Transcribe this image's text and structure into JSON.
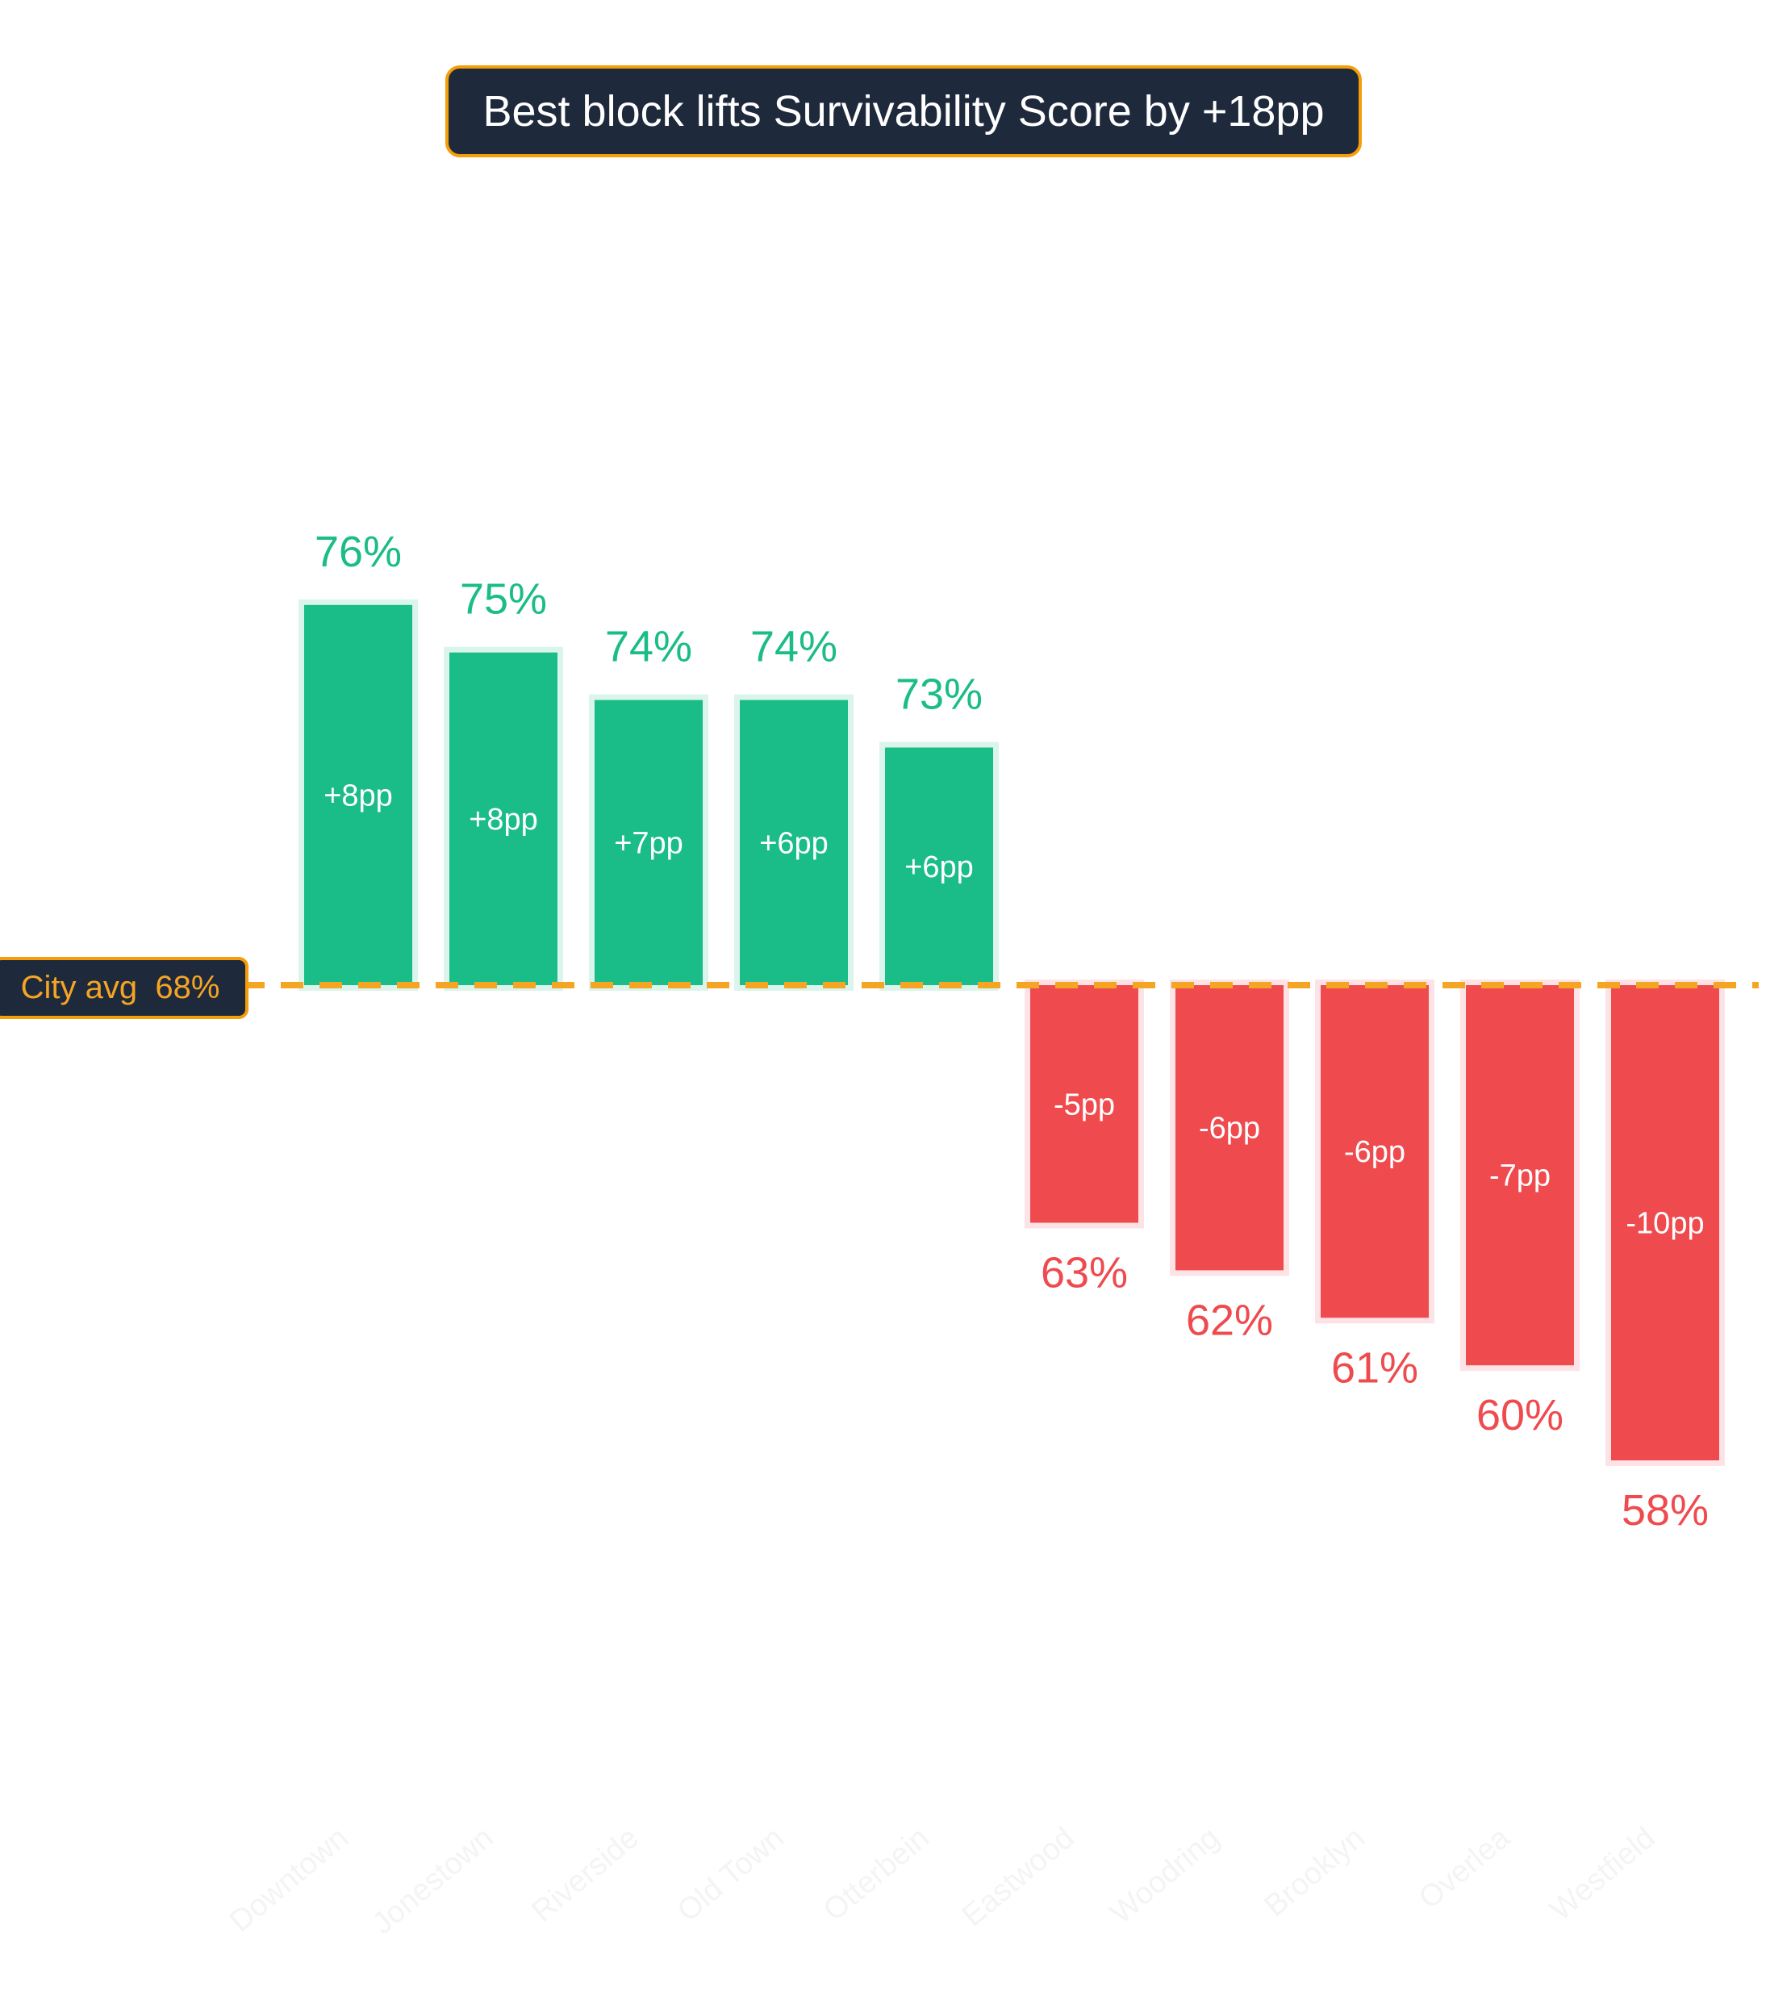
{
  "chart_data": {
    "type": "bar",
    "title": "Best block lifts Survivability Score by +18pp",
    "xlabel": "",
    "ylabel": "",
    "categories": [
      "Downtown",
      "Jonestown",
      "Riverside",
      "Old Town",
      "Otterbein",
      "Eastwood",
      "Woodring",
      "Brooklyn",
      "Overlea",
      "Westfield"
    ],
    "values": [
      76,
      75,
      74,
      74,
      73,
      63,
      62,
      61,
      60,
      58
    ],
    "value_labels": [
      "76%",
      "75%",
      "74%",
      "74%",
      "73%",
      "63%",
      "62%",
      "61%",
      "60%",
      "58%"
    ],
    "delta_labels": [
      "+8pp",
      "+8pp",
      "+7pp",
      "+6pp",
      "+6pp",
      "-5pp",
      "-6pp",
      "-6pp",
      "-7pp",
      "-10pp"
    ],
    "reference": {
      "label": "City avg  68%",
      "value": 68
    },
    "ylim": [
      50,
      90
    ],
    "grid": false,
    "legend": "none",
    "colors": {
      "above": "#1abc87",
      "above_halo": "#dcf5ec",
      "below": "#ef4b4f",
      "below_halo": "#fde3e6",
      "reference_line": "#f5a524",
      "box_fill": "#1e293b",
      "box_border": "#f59e0b",
      "category_text": "#f4f4f4"
    }
  }
}
